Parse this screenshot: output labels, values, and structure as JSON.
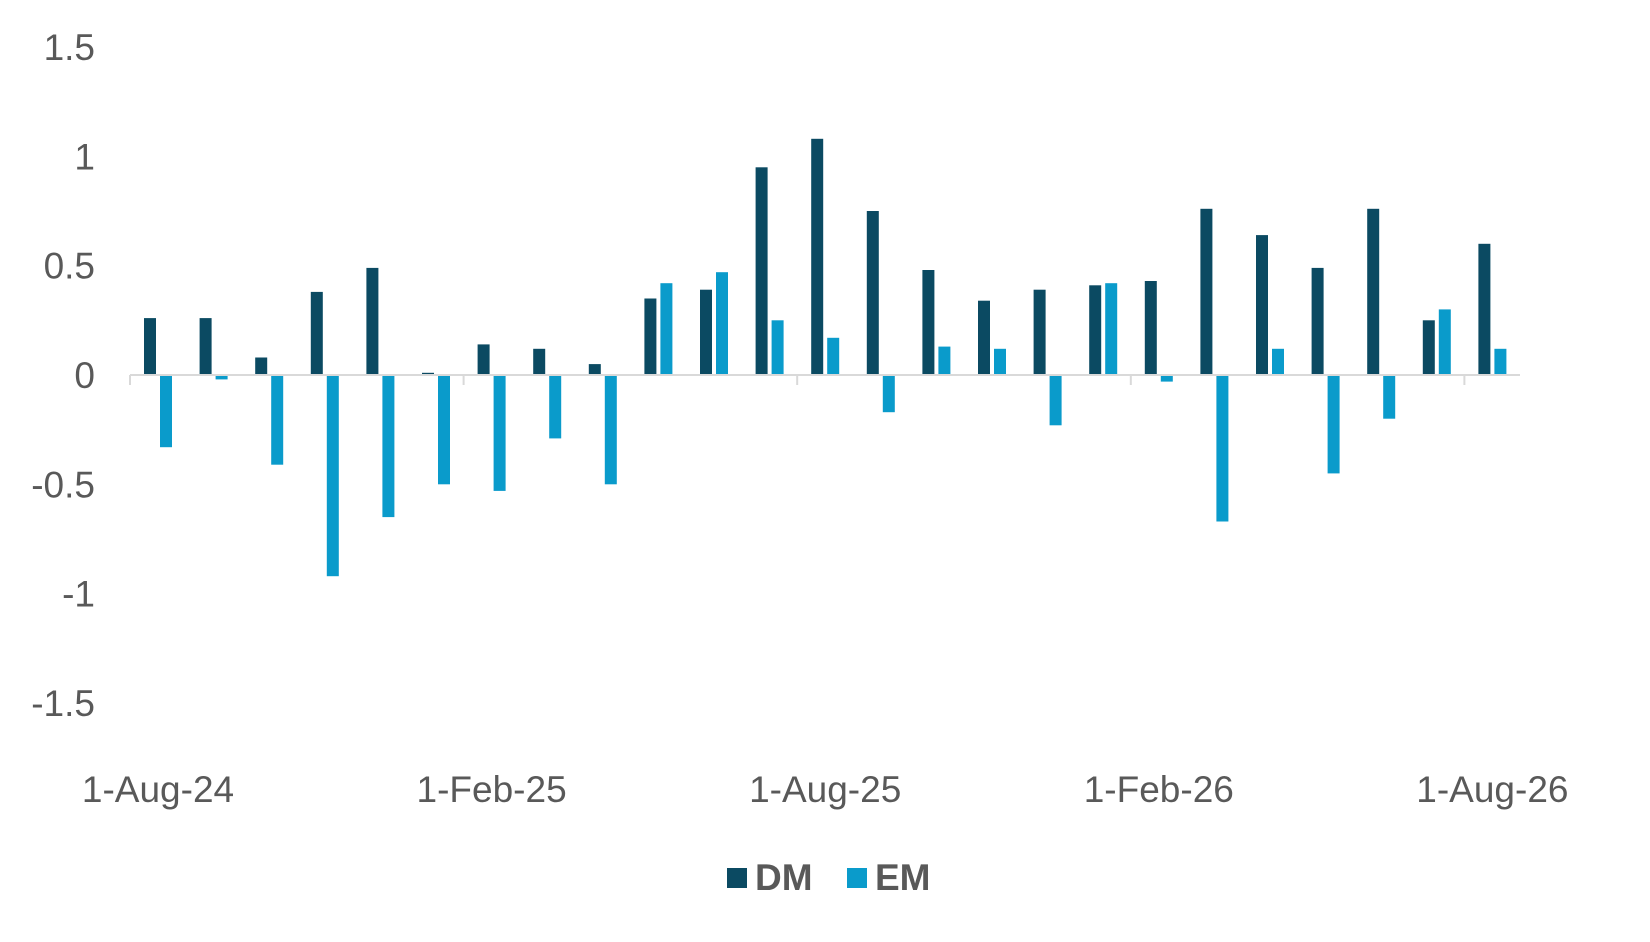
{
  "chart_data": {
    "type": "bar",
    "title": "",
    "xlabel": "",
    "ylabel": "",
    "ylim": [
      -1.5,
      1.5
    ],
    "y_ticks": [
      "1.5",
      "1",
      "0.5",
      "0",
      "-0.5",
      "-1",
      "-1.5"
    ],
    "x_tick_labels": [
      "1-Aug-24",
      "1-Feb-25",
      "1-Aug-25",
      "1-Feb-26",
      "1-Aug-26"
    ],
    "categories": [
      "Aug-24",
      "Sep-24",
      "Oct-24",
      "Nov-24",
      "Dec-24",
      "Jan-25",
      "Feb-25",
      "Mar-25",
      "Apr-25",
      "May-25",
      "Jun-25",
      "Jul-25",
      "Aug-25",
      "Sep-25",
      "Oct-25",
      "Nov-25",
      "Dec-25",
      "Jan-26",
      "Feb-26",
      "Mar-26",
      "Apr-26",
      "May-26",
      "Jun-26",
      "Jul-26",
      "Aug-26"
    ],
    "series": [
      {
        "name": "DM",
        "color": "#0b4a62",
        "values": [
          0.26,
          0.26,
          0.08,
          0.38,
          0.49,
          0.01,
          0.14,
          0.12,
          0.05,
          0.35,
          0.39,
          0.95,
          1.08,
          0.75,
          0.48,
          0.34,
          0.39,
          0.41,
          0.43,
          0.76,
          0.64,
          0.49,
          0.76,
          0.25,
          0.6
        ]
      },
      {
        "name": "EM",
        "color": "#0a9bcb",
        "values": [
          -0.33,
          -0.02,
          -0.41,
          -0.92,
          -0.65,
          -0.5,
          -0.53,
          -0.29,
          -0.5,
          0.42,
          0.47,
          0.25,
          0.17,
          -0.17,
          0.13,
          0.12,
          -0.23,
          0.42,
          -0.03,
          -0.67,
          0.12,
          -0.45,
          -0.2,
          0.3,
          0.12
        ]
      }
    ],
    "legend_position": "bottom",
    "grid": false
  }
}
